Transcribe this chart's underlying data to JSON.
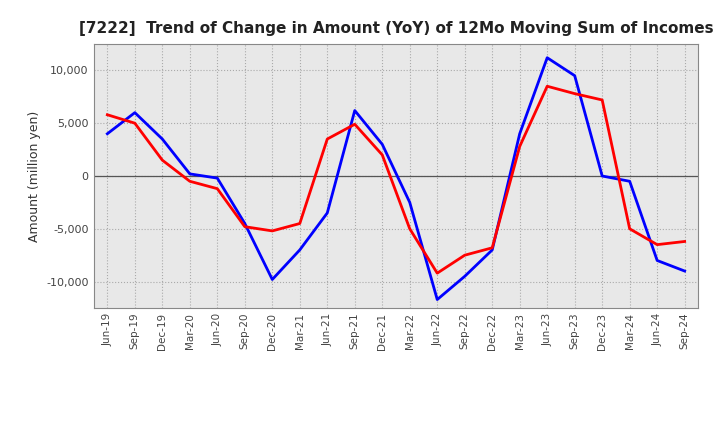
{
  "title": "[7222]  Trend of Change in Amount (YoY) of 12Mo Moving Sum of Incomes",
  "ylabel": "Amount (million yen)",
  "x_labels": [
    "Jun-19",
    "Sep-19",
    "Dec-19",
    "Mar-20",
    "Jun-20",
    "Sep-20",
    "Dec-20",
    "Mar-21",
    "Jun-21",
    "Sep-21",
    "Dec-21",
    "Mar-22",
    "Jun-22",
    "Sep-22",
    "Dec-22",
    "Mar-23",
    "Jun-23",
    "Sep-23",
    "Dec-23",
    "Mar-24",
    "Jun-24",
    "Sep-24"
  ],
  "ordinary_income": [
    4000,
    6000,
    3500,
    200,
    -200,
    -4500,
    -9800,
    -7000,
    -3500,
    6200,
    3000,
    -2500,
    -11700,
    -9500,
    -7000,
    4000,
    11200,
    9500,
    0,
    -500,
    -8000,
    -9000
  ],
  "net_income": [
    5800,
    5000,
    1500,
    -500,
    -1200,
    -4800,
    -5200,
    -4500,
    3500,
    4900,
    2000,
    -5000,
    -9200,
    -7500,
    -6800,
    2800,
    8500,
    7800,
    7200,
    -5000,
    -6500,
    -6200
  ],
  "ordinary_income_color": "#0000FF",
  "net_income_color": "#FF0000",
  "line_width": 2.0,
  "ylim": [
    -12500,
    12500
  ],
  "yticks": [
    -10000,
    -5000,
    0,
    5000,
    10000
  ],
  "plot_bg_color": "#E8E8E8",
  "fig_bg_color": "#FFFFFF",
  "grid_color": "#AAAAAA",
  "zero_line_color": "#555555"
}
